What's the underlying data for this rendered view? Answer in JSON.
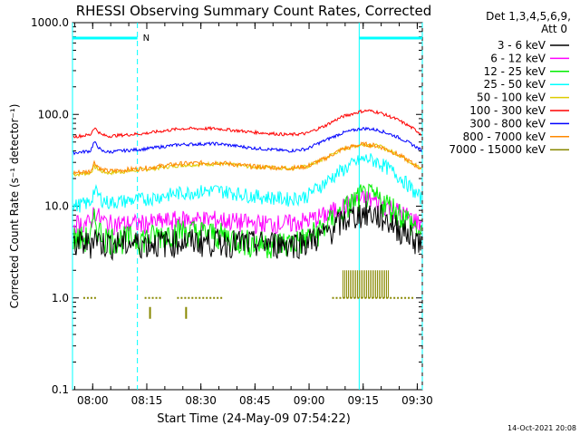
{
  "chart_data": {
    "type": "line",
    "title": "RHESSI Observing Summary Count Rates, Corrected",
    "xlabel": "Start Time (24-May-09 07:54:22)",
    "ylabel": "Corrected Count Rate (s⁻¹ detector⁻¹)",
    "ylim": [
      0.1,
      1000.0
    ],
    "yscale": "log",
    "xlim_minutes": [
      0,
      97
    ],
    "x_ticks": [
      {
        "label": "08:00",
        "minute": 5.6
      },
      {
        "label": "08:15",
        "minute": 20.6
      },
      {
        "label": "08:30",
        "minute": 35.6
      },
      {
        "label": "08:45",
        "minute": 50.6
      },
      {
        "label": "09:00",
        "minute": 65.6
      },
      {
        "label": "09:15",
        "minute": 80.6
      },
      {
        "label": "09:30",
        "minute": 95.6
      }
    ],
    "y_ticks": [
      {
        "label": "1000.0",
        "value": 1000
      },
      {
        "label": "100.0",
        "value": 100
      },
      {
        "label": "10.0",
        "value": 10
      },
      {
        "label": "1.0",
        "value": 1
      },
      {
        "label": "0.1",
        "value": 0.1
      }
    ],
    "legend_header": [
      "Det 1,3,4,5,6,9,",
      "Att 0"
    ],
    "legend_position": "right",
    "series": [
      {
        "name": "3 - 6 keV",
        "color": "#000000",
        "x": [
          0,
          5,
          6,
          8,
          10,
          20,
          30,
          40,
          50,
          60,
          65,
          70,
          75,
          80,
          82,
          85,
          90,
          95,
          97
        ],
        "y": [
          4,
          4,
          5,
          4,
          4,
          4,
          4.2,
          4.2,
          4,
          4,
          4.2,
          5,
          7,
          8.5,
          8.5,
          8,
          6,
          4.5,
          4
        ]
      },
      {
        "name": "6 - 12 keV",
        "color": "#ff00ff",
        "x": [
          0,
          5,
          6,
          8,
          10,
          20,
          30,
          40,
          50,
          60,
          65,
          70,
          75,
          80,
          82,
          85,
          90,
          95,
          97
        ],
        "y": [
          6.5,
          6.5,
          9,
          7,
          6.5,
          6.5,
          7.2,
          7.2,
          6.5,
          6.5,
          7,
          8,
          10,
          12,
          12,
          11,
          9,
          7,
          6.5
        ]
      },
      {
        "name": "12 - 25 keV",
        "color": "#00ee00",
        "x": [
          0,
          5,
          6,
          8,
          10,
          20,
          30,
          40,
          50,
          60,
          65,
          70,
          75,
          80,
          82,
          85,
          90,
          95,
          97
        ],
        "y": [
          4.5,
          4.5,
          7,
          5,
          4.5,
          4.5,
          5.5,
          5,
          4,
          4,
          4.5,
          6,
          9,
          13,
          13,
          12,
          9,
          6,
          4.5
        ]
      },
      {
        "name": "25 - 50 keV",
        "color": "#00ffff",
        "x": [
          0,
          5,
          6,
          8,
          10,
          20,
          30,
          40,
          50,
          60,
          65,
          70,
          75,
          80,
          82,
          85,
          90,
          95,
          97
        ],
        "y": [
          10,
          11,
          15,
          12,
          11,
          12,
          14,
          15,
          13,
          12,
          13,
          18,
          25,
          32,
          33,
          30,
          22,
          14,
          12
        ]
      },
      {
        "name": "50 - 100 keV",
        "color": "#ddcc00",
        "x": [
          0,
          5,
          6,
          8,
          10,
          20,
          30,
          40,
          50,
          60,
          65,
          70,
          75,
          80,
          82,
          85,
          90,
          95,
          97
        ],
        "y": [
          22,
          23,
          27,
          24,
          23,
          25,
          28,
          29,
          27,
          26,
          27,
          33,
          42,
          47,
          47,
          45,
          37,
          28,
          25
        ]
      },
      {
        "name": "100 - 300 keV",
        "color": "#ff0000",
        "x": [
          0,
          5,
          6,
          8,
          10,
          20,
          30,
          40,
          50,
          60,
          65,
          70,
          75,
          80,
          82,
          85,
          90,
          95,
          97
        ],
        "y": [
          57,
          60,
          72,
          60,
          58,
          62,
          70,
          70,
          64,
          60,
          62,
          75,
          95,
          108,
          110,
          105,
          88,
          68,
          60
        ]
      },
      {
        "name": "300 - 800 keV",
        "color": "#0000ff",
        "x": [
          0,
          5,
          6,
          8,
          10,
          20,
          30,
          40,
          50,
          60,
          65,
          70,
          75,
          80,
          82,
          85,
          90,
          95,
          97
        ],
        "y": [
          38,
          40,
          50,
          40,
          39,
          42,
          47,
          48,
          43,
          40,
          42,
          52,
          63,
          70,
          70,
          67,
          57,
          45,
          40
        ]
      },
      {
        "name": "800 - 7000 keV",
        "color": "#ff8800",
        "x": [
          0,
          5,
          6,
          8,
          10,
          20,
          30,
          40,
          50,
          60,
          65,
          70,
          75,
          80,
          82,
          85,
          90,
          95,
          97
        ],
        "y": [
          23,
          24,
          30,
          25,
          24,
          26,
          29,
          30,
          27,
          26,
          27,
          33,
          42,
          47,
          47,
          45,
          37,
          28,
          25
        ]
      },
      {
        "name": "7000 - 15000 keV",
        "color": "#888800",
        "x": [
          3,
          4,
          5,
          6,
          20,
          21,
          22,
          23,
          24,
          29,
          30,
          31,
          32,
          33,
          34,
          35,
          36,
          37,
          38,
          39,
          40,
          41,
          72,
          73,
          74,
          75,
          76,
          77,
          78,
          79,
          80,
          81,
          82,
          83,
          84,
          85,
          86,
          87,
          88,
          89,
          90,
          91,
          92,
          93,
          94
        ],
        "y": [
          1,
          1,
          1,
          1,
          1,
          1,
          1,
          1,
          1,
          1,
          1,
          1,
          1,
          1,
          1,
          1,
          1,
          1,
          1,
          1,
          1,
          1,
          1,
          1,
          1,
          1,
          1,
          1,
          1,
          1,
          1,
          1,
          1,
          1,
          1,
          1,
          1,
          1,
          1,
          1,
          1,
          1,
          1,
          1,
          1
        ]
      }
    ],
    "annotations": {
      "night_bars": [
        [
          0,
          18
        ],
        [
          79.5,
          97
        ]
      ],
      "night_label": "N",
      "dashed_lines_minutes": [
        18,
        97
      ],
      "solid_lines_minutes": [
        0,
        79.5
      ],
      "saa_spikes": {
        "x": [
          21.5,
          31.5
        ],
        "y": [
          0.75,
          0.75
        ]
      },
      "flare_block": {
        "x": [
          75,
          88
        ],
        "y": [
          1,
          2
        ]
      }
    }
  },
  "footer_date": "14-Oct-2021 20:08"
}
